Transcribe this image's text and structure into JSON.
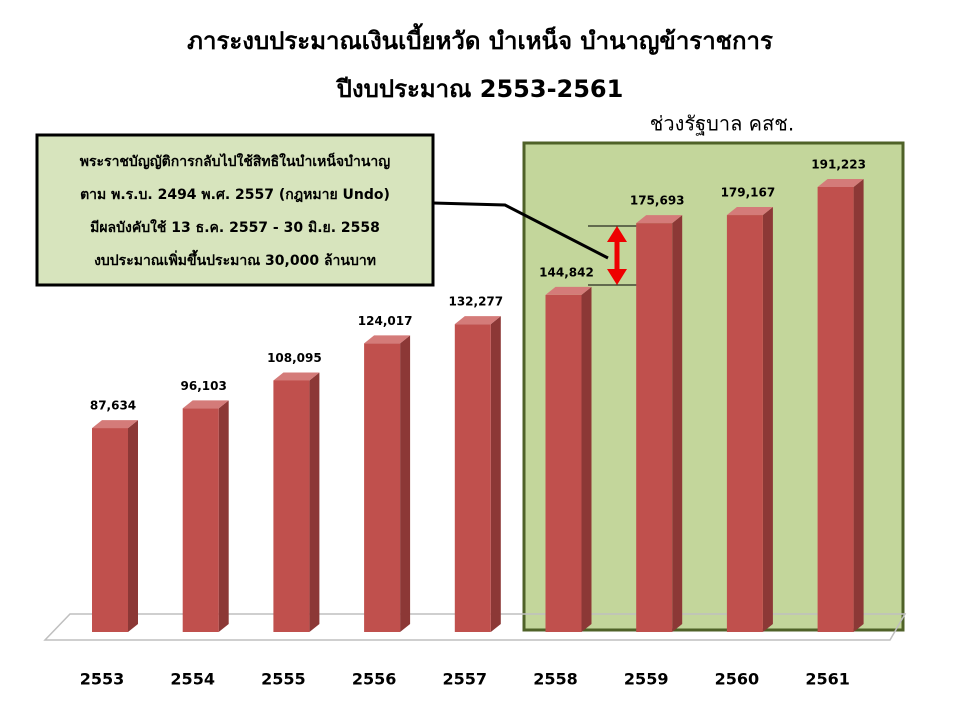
{
  "chart_data": {
    "type": "bar3d",
    "title": "ภาระงบประมาณเงินเบี้ยหวัด บำเหน็จ บำนาญข้าราชการ",
    "subtitle": "ปีงบประมาณ 2553-2561",
    "annotation": "ช่วงรัฐบาล คสช.",
    "callout": [
      "พระราชบัญญัติการกลับไปใช้สิทธิในบำเหน็จบำนาญ",
      "ตาม พ.ร.บ. 2494 พ.ศ. 2557 (กฎหมาย Undo)",
      "มีผลบังคับใช้ 13 ธ.ค. 2557 - 30 มิ.ย. 2558",
      "งบประมาณเพิ่มขึ้นประมาณ 30,000 ล้านบาท"
    ],
    "categories": [
      "2553",
      "2554",
      "2555",
      "2556",
      "2557",
      "2558",
      "2559",
      "2560",
      "2561"
    ],
    "values": [
      87634,
      96103,
      108095,
      124017,
      132277,
      144842,
      175693,
      179167,
      191223
    ],
    "value_labels": [
      "87,634",
      "96,103",
      "108,095",
      "124,017",
      "132,277",
      "144,842",
      "175,693",
      "179,167",
      "191,223"
    ],
    "color": "#c0504d"
  }
}
